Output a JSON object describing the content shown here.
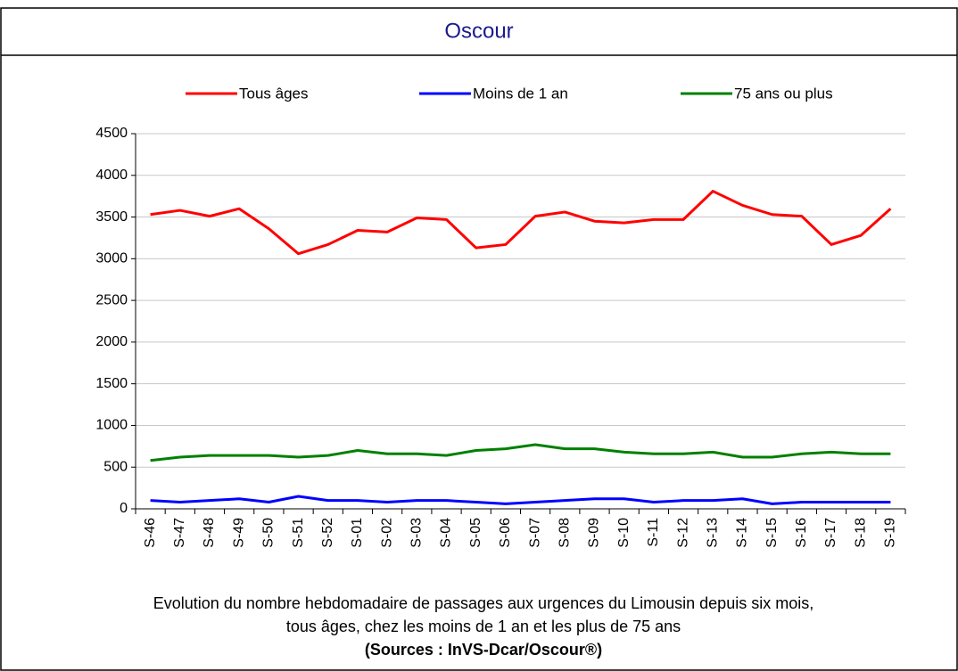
{
  "chart_data": {
    "type": "line",
    "title": "Oscour",
    "categories": [
      "S-46",
      "S-47",
      "S-48",
      "S-49",
      "S-50",
      "S-51",
      "S-52",
      "S-01",
      "S-02",
      "S-03",
      "S-04",
      "S-05",
      "S-06",
      "S-07",
      "S-08",
      "S-09",
      "S-10",
      "S-11",
      "S-12",
      "S-13",
      "S-14",
      "S-15",
      "S-16",
      "S-17",
      "S-18",
      "S-19"
    ],
    "series": [
      {
        "name": "Tous âges",
        "color": "#ff0000",
        "values": [
          3530,
          3580,
          3510,
          3600,
          3360,
          3060,
          3170,
          3340,
          3320,
          3490,
          3470,
          3130,
          3170,
          3510,
          3560,
          3450,
          3430,
          3470,
          3470,
          3810,
          3640,
          3530,
          3510,
          3170,
          3280,
          3600
        ]
      },
      {
        "name": "Moins de 1 an",
        "color": "#0000ff",
        "values": [
          100,
          80,
          100,
          120,
          80,
          150,
          100,
          100,
          80,
          100,
          100,
          80,
          60,
          80,
          100,
          120,
          120,
          80,
          100,
          100,
          120,
          60,
          80,
          80,
          80,
          80
        ]
      },
      {
        "name": "75 ans ou plus",
        "color": "#008000",
        "values": [
          580,
          620,
          640,
          640,
          640,
          620,
          640,
          700,
          660,
          660,
          640,
          700,
          720,
          770,
          720,
          720,
          680,
          660,
          660,
          680,
          620,
          620,
          660,
          680,
          660,
          660
        ]
      }
    ],
    "ylim": [
      0,
      4500
    ],
    "yticks": [
      0,
      500,
      1000,
      1500,
      2000,
      2500,
      3000,
      3500,
      4000,
      4500
    ],
    "grid": true,
    "caption": [
      "Evolution du nombre hebdomadaire de passages aux urgences du Limousin depuis six mois,",
      "tous âges, chez les moins de 1 an et les plus de 75 ans"
    ],
    "source": "(Sources : InVS-Dcar/Oscour®)"
  }
}
